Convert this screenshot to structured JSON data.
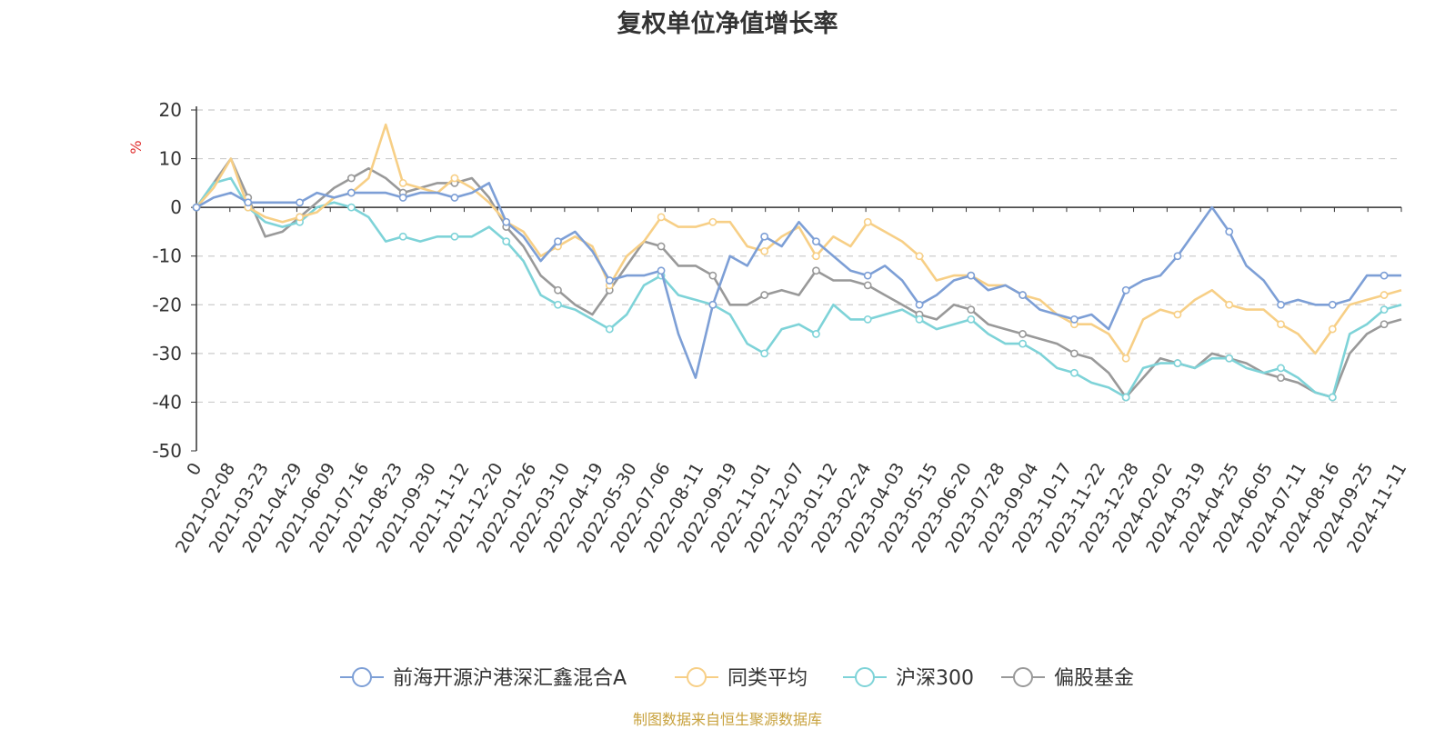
{
  "chart_data": {
    "type": "line",
    "title": "复权单位净值增长率",
    "ylabel": "%",
    "xlabel": "",
    "ylim": [
      -50,
      20
    ],
    "yticks": [
      20,
      10,
      0,
      -10,
      -20,
      -30,
      -40,
      -50
    ],
    "grid": true,
    "legend_position": "bottom",
    "x_tick_labels": [
      "0",
      "2021-02-08",
      "2021-03-23",
      "2021-04-29",
      "2021-06-09",
      "2021-07-16",
      "2021-08-23",
      "2021-09-30",
      "2021-11-12",
      "2021-12-20",
      "2022-01-26",
      "2022-03-10",
      "2022-04-19",
      "2022-05-30",
      "2022-07-06",
      "2022-08-11",
      "2022-09-19",
      "2022-11-01",
      "2022-12-07",
      "2023-01-12",
      "2023-02-24",
      "2023-04-03",
      "2023-05-15",
      "2023-06-20",
      "2023-07-28",
      "2023-09-04",
      "2023-10-17",
      "2023-11-22",
      "2023-12-28",
      "2024-02-02",
      "2024-03-19",
      "2024-04-25",
      "2024-06-05",
      "2024-07-11",
      "2024-08-16",
      "2024-09-25",
      "2024-11-11"
    ],
    "series": [
      {
        "name": "前海开源沪港深汇鑫混合A",
        "color": "#7d9fd6",
        "values": [
          0,
          2,
          3,
          1,
          1,
          1,
          1,
          3,
          2,
          3,
          3,
          3,
          2,
          3,
          3,
          2,
          3,
          5,
          -3,
          -6,
          -11,
          -7,
          -5,
          -9,
          -15,
          -14,
          -14,
          -13,
          -26,
          -35,
          -20,
          -10,
          -12,
          -6,
          -8,
          -3,
          -7,
          -10,
          -13,
          -14,
          -12,
          -15,
          -20,
          -18,
          -15,
          -14,
          -17,
          -16,
          -18,
          -21,
          -22,
          -23,
          -22,
          -25,
          -17,
          -15,
          -14,
          -10,
          -5,
          0,
          -5,
          -12,
          -15,
          -20,
          -19,
          -20,
          -20,
          -19,
          -14,
          -14,
          -14
        ]
      },
      {
        "name": "同类平均",
        "color": "#f7cf86",
        "values": [
          0,
          4,
          10,
          0,
          -2,
          -3,
          -2,
          -1,
          2,
          3,
          6,
          17,
          5,
          4,
          3,
          6,
          4,
          1,
          -3,
          -5,
          -10,
          -8,
          -6,
          -8,
          -16,
          -10,
          -7,
          -2,
          -4,
          -4,
          -3,
          -3,
          -8,
          -9,
          -6,
          -4,
          -10,
          -6,
          -8,
          -3,
          -5,
          -7,
          -10,
          -15,
          -14,
          -14,
          -16,
          -16,
          -18,
          -19,
          -22,
          -24,
          -24,
          -26,
          -31,
          -23,
          -21,
          -22,
          -19,
          -17,
          -20,
          -21,
          -21,
          -24,
          -26,
          -30,
          -25,
          -20,
          -19,
          -18,
          -17
        ]
      },
      {
        "name": "沪深300",
        "color": "#7ed3d8",
        "values": [
          0,
          5,
          6,
          0,
          -3,
          -4,
          -3,
          0,
          1,
          0,
          -2,
          -7,
          -6,
          -7,
          -6,
          -6,
          -6,
          -4,
          -7,
          -11,
          -18,
          -20,
          -21,
          -23,
          -25,
          -22,
          -16,
          -14,
          -18,
          -19,
          -20,
          -22,
          -28,
          -30,
          -25,
          -24,
          -26,
          -20,
          -23,
          -23,
          -22,
          -21,
          -23,
          -25,
          -24,
          -23,
          -26,
          -28,
          -28,
          -30,
          -33,
          -34,
          -36,
          -37,
          -39,
          -33,
          -32,
          -32,
          -33,
          -31,
          -31,
          -33,
          -34,
          -33,
          -35,
          -38,
          -39,
          -26,
          -24,
          -21,
          -20
        ]
      },
      {
        "name": "偏股基金",
        "color": "#999999",
        "values": [
          0,
          5,
          10,
          2,
          -6,
          -5,
          -2,
          1,
          4,
          6,
          8,
          6,
          3,
          4,
          5,
          5,
          6,
          2,
          -4,
          -8,
          -14,
          -17,
          -20,
          -22,
          -17,
          -12,
          -7,
          -8,
          -12,
          -12,
          -14,
          -20,
          -20,
          -18,
          -17,
          -18,
          -13,
          -15,
          -15,
          -16,
          -18,
          -20,
          -22,
          -23,
          -20,
          -21,
          -24,
          -25,
          -26,
          -27,
          -28,
          -30,
          -31,
          -34,
          -39,
          -35,
          -31,
          -32,
          -33,
          -30,
          -31,
          -32,
          -34,
          -35,
          -36,
          -38,
          -39,
          -30,
          -26,
          -24,
          -23
        ]
      }
    ]
  },
  "source_note": "制图数据来自恒生聚源数据库"
}
